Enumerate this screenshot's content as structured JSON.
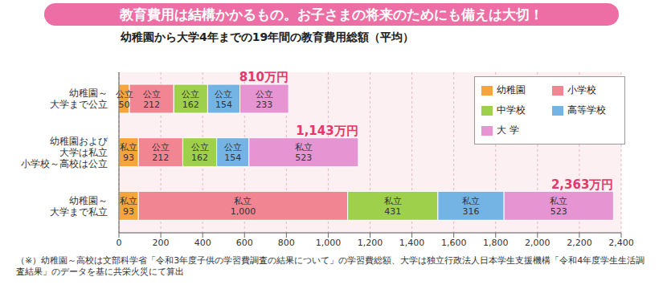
{
  "chart_data": {
    "type": "bar",
    "subtitle": "教育費用は結構かかるもの。お子さまの将来のためにも備えは大切！",
    "title": "幼稚園から大学4年までの19年間の教育費用総額（平均）",
    "orientation": "horizontal",
    "stacked": true,
    "data_labels": true,
    "grid": true,
    "legend": "top-right",
    "categories": [
      "幼稚園～\n大学まで公立",
      "幼稚園および\n大学は私立\n小学校～高校は公立",
      "幼稚園～\n大学まで私立"
    ],
    "series": [
      {
        "name": "幼稚園",
        "color": "#f7a43a",
        "values": [
          50,
          93,
          93
        ],
        "value_labels": [
          "公立 50",
          "私立 93",
          "私立 93"
        ]
      },
      {
        "name": "小学校",
        "color": "#f28592",
        "values": [
          212,
          212,
          1000
        ],
        "value_labels": [
          "公立 212",
          "公立 212",
          "私立 1,000"
        ]
      },
      {
        "name": "中学校",
        "color": "#9fd04c",
        "values": [
          162,
          162,
          431
        ],
        "value_labels": [
          "公立 162",
          "公立 162",
          "私立 431"
        ]
      },
      {
        "name": "高等学校",
        "color": "#74b4e4",
        "values": [
          154,
          154,
          316
        ],
        "value_labels": [
          "公立 154",
          "公立 154",
          "私立 316"
        ]
      },
      {
        "name": "大 学",
        "color": "#e795d2",
        "values": [
          233,
          523,
          523
        ],
        "value_labels": [
          "公立 233",
          "私立 523",
          "私立 523"
        ]
      }
    ],
    "totals": {
      "values": [
        810,
        1143,
        2363
      ],
      "labels": [
        "810万円",
        "1,143万円",
        "2,363万円"
      ]
    },
    "xlim": [
      0,
      2400
    ],
    "xticks": [
      0,
      200,
      400,
      600,
      800,
      {
        "value": 1000,
        "label": "1,000"
      },
      {
        "value": 1200,
        "label": "1,200"
      },
      {
        "value": 1400,
        "label": "1,400"
      },
      {
        "value": 1600,
        "label": "1,600"
      },
      {
        "value": 1800,
        "label": "1,800"
      },
      {
        "value": 2000,
        "label": "2,000"
      },
      {
        "value": 2200,
        "label": "2,200"
      },
      {
        "value": 2400,
        "label": "2,400"
      }
    ],
    "footnote": "（※）幼稚園～高校は文部科学省「令和3年度子供の学習費調査の結果について」の学習費総額、大学は独立行政法人日本学生支援機構「令和4年度学生生活調査結果」のデータを基に共栄火災にて算出"
  }
}
